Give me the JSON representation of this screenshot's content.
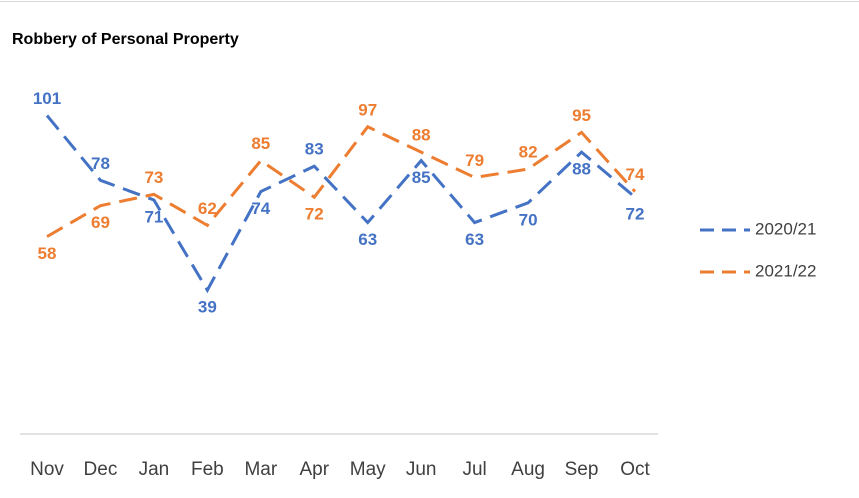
{
  "chart_data": {
    "type": "line",
    "title": "Robbery of Personal Property",
    "categories": [
      "Nov",
      "Dec",
      "Jan",
      "Feb",
      "Mar",
      "Apr",
      "May",
      "Jun",
      "Jul",
      "Aug",
      "Sep",
      "Oct"
    ],
    "series": [
      {
        "name": "2020/21",
        "color": "#4472c4",
        "values": [
          101,
          78,
          71,
          39,
          74,
          83,
          63,
          85,
          63,
          70,
          88,
          72
        ]
      },
      {
        "name": "2021/22",
        "color": "#ed7d31",
        "values": [
          58,
          69,
          73,
          62,
          85,
          72,
          97,
          88,
          79,
          82,
          95,
          74
        ]
      }
    ],
    "ylim": [
      0,
      120
    ],
    "legend": "right",
    "line_style": "dashed",
    "data_labels": true
  }
}
